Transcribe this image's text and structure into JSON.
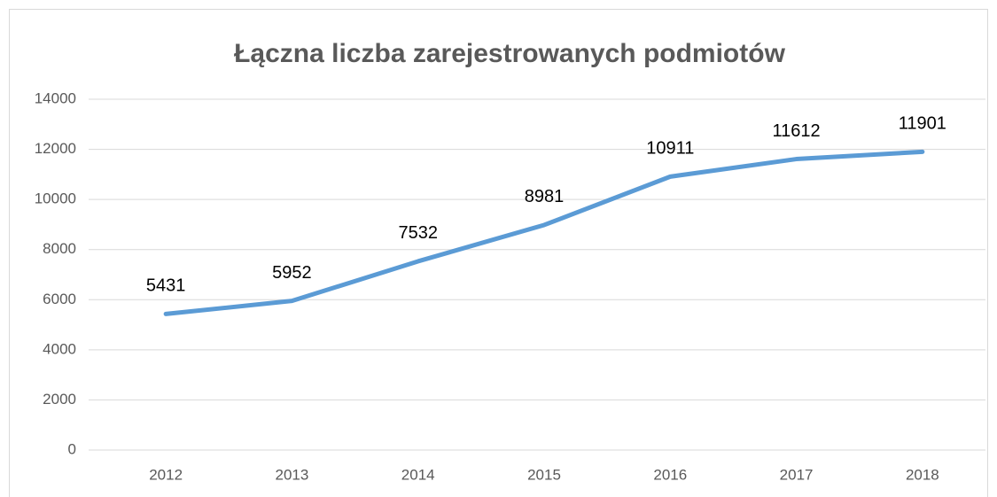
{
  "chart_data": {
    "type": "line",
    "title": "Łączna liczba zarejestrowanych podmiotów",
    "categories": [
      "2012",
      "2013",
      "2014",
      "2015",
      "2016",
      "2017",
      "2018"
    ],
    "values": [
      5431,
      5952,
      7532,
      8981,
      10911,
      11612,
      11901
    ],
    "color": "#5b9bd5",
    "ylim": [
      0,
      14000
    ],
    "yticks": [
      0,
      2000,
      4000,
      6000,
      8000,
      10000,
      12000,
      14000
    ],
    "grid": true
  }
}
